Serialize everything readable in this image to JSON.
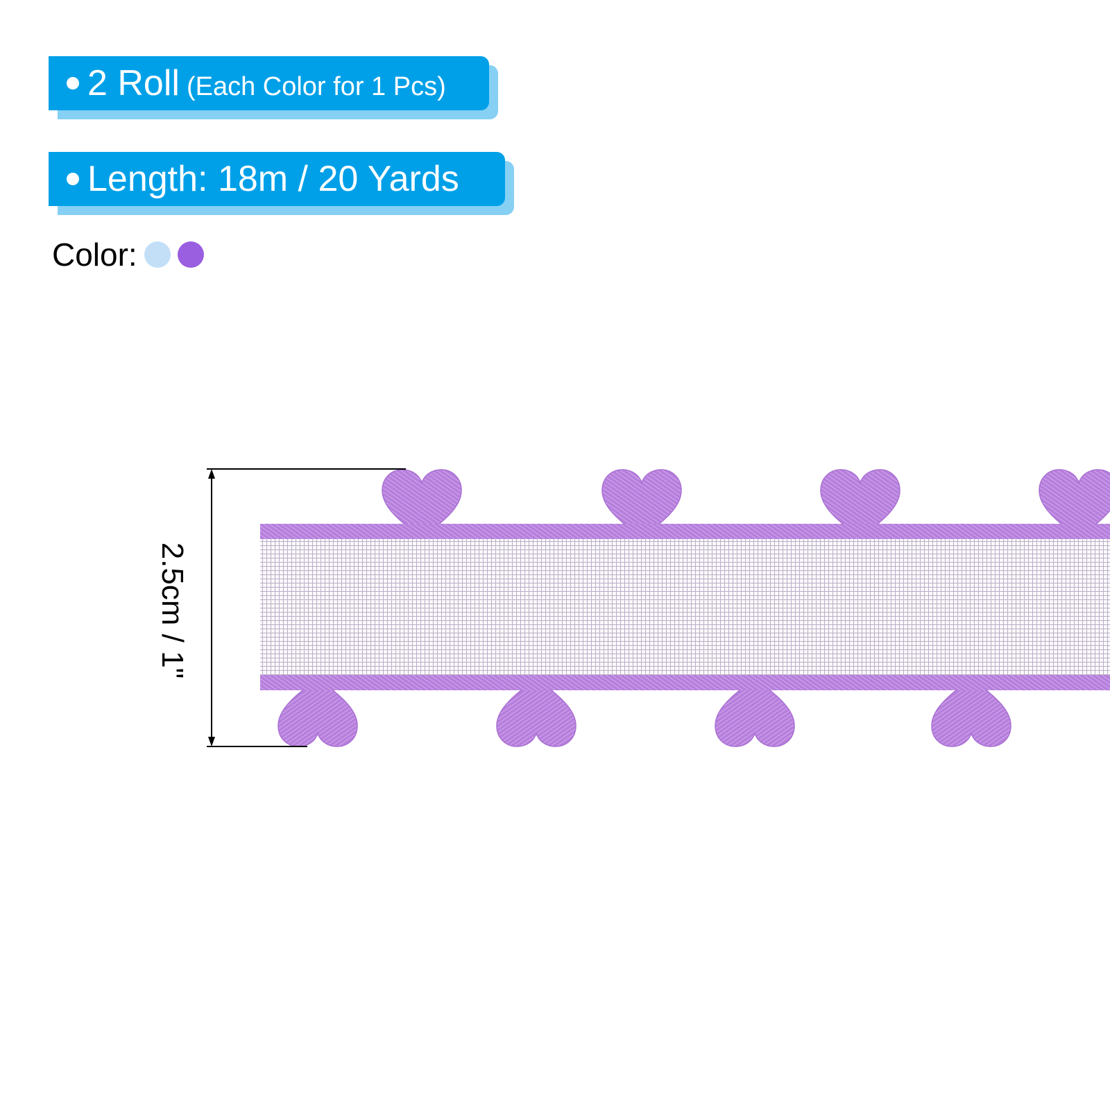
{
  "badges": [
    {
      "main": "2 Roll",
      "sub": "(Each Color for 1 Pcs)"
    },
    {
      "main": "Length: 18m / 20 Yards"
    }
  ],
  "color_label": "Color:",
  "colors": [
    "#c3dff8",
    "#9a5ee0"
  ],
  "dimension_label": "2.5cm / 1\"",
  "accent": "#00a0e8",
  "ribbon_color": "#b67fdc"
}
